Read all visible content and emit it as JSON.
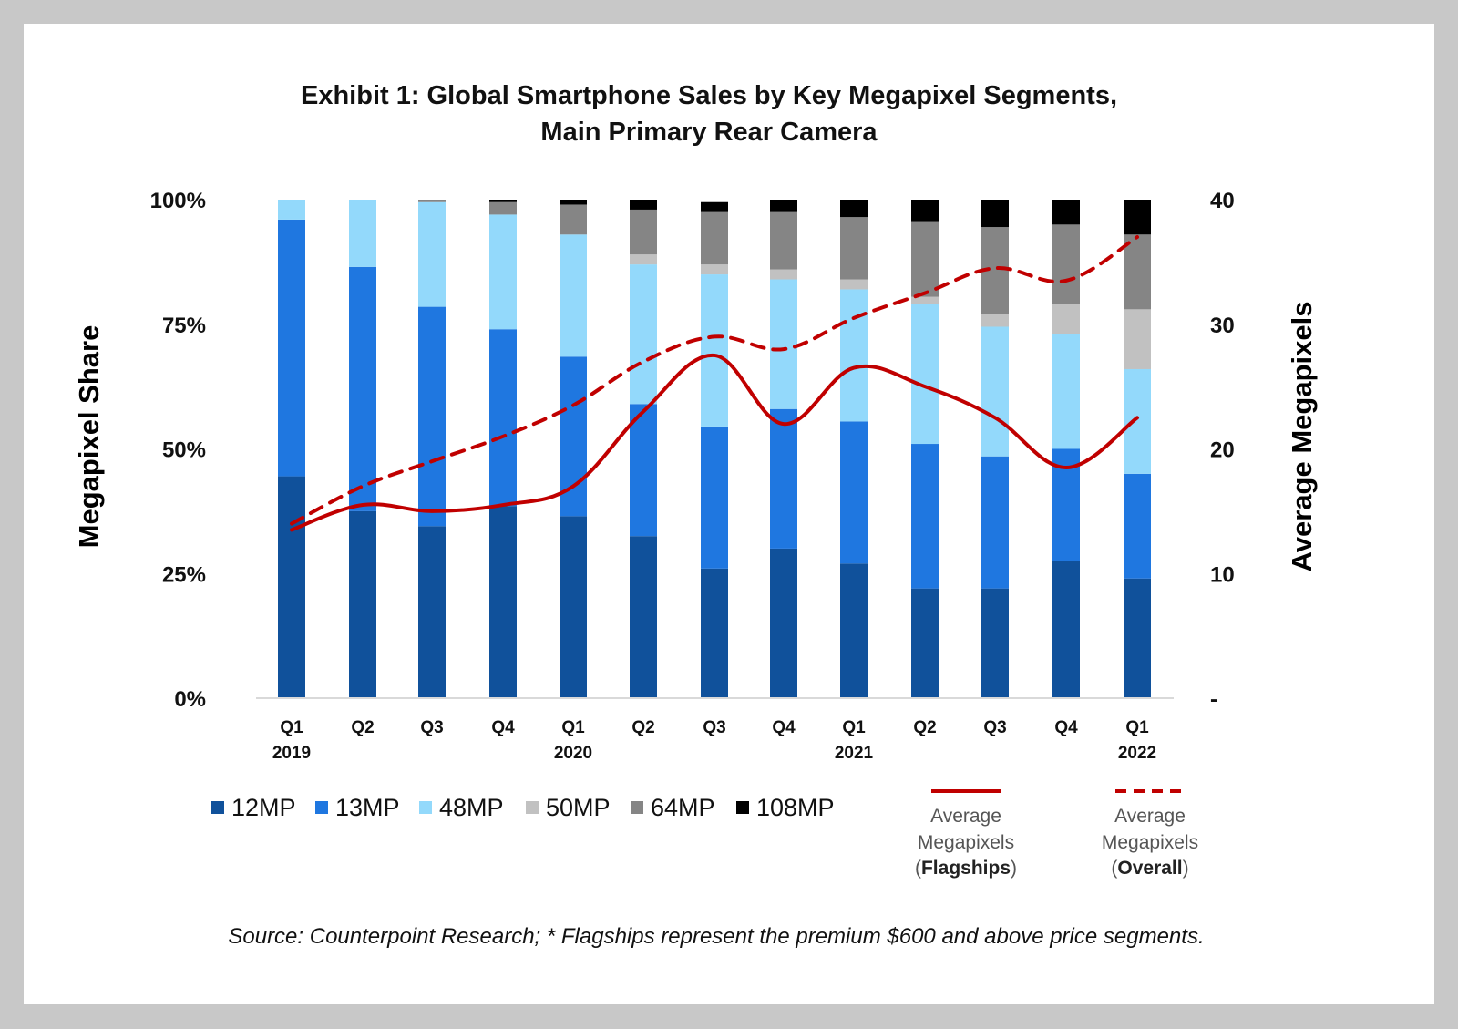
{
  "chart_data": {
    "type": "bar",
    "stacked": true,
    "title": [
      "Exhibit 1:  Global Smartphone Sales by Key Megapixel Segments,",
      "Main Primary Rear Camera"
    ],
    "ylabel": "Megapixel Share",
    "y2label": "Average Megapixels",
    "ylim": [
      0,
      100
    ],
    "y2lim": [
      0,
      40
    ],
    "yticks": [
      "0%",
      "25%",
      "50%",
      "75%",
      "100%"
    ],
    "y2ticks": [
      "-",
      "10",
      "20",
      "30",
      "40"
    ],
    "categories": [
      {
        "q": "Q1",
        "year": "2019"
      },
      {
        "q": "Q2",
        "year": ""
      },
      {
        "q": "Q3",
        "year": ""
      },
      {
        "q": "Q4",
        "year": ""
      },
      {
        "q": "Q1",
        "year": "2020"
      },
      {
        "q": "Q2",
        "year": ""
      },
      {
        "q": "Q3",
        "year": ""
      },
      {
        "q": "Q4",
        "year": ""
      },
      {
        "q": "Q1",
        "year": "2021"
      },
      {
        "q": "Q2",
        "year": ""
      },
      {
        "q": "Q3",
        "year": ""
      },
      {
        "q": "Q4",
        "year": ""
      },
      {
        "q": "Q1",
        "year": "2022"
      }
    ],
    "series": [
      {
        "name": "12MP",
        "color": "#10519b",
        "values": [
          44.5,
          37.5,
          34.5,
          38.5,
          36.5,
          32.5,
          26,
          30,
          27,
          22,
          22,
          27.5,
          24
        ]
      },
      {
        "name": "13MP",
        "color": "#1f77e0",
        "values": [
          51.5,
          49,
          44,
          35.5,
          32,
          26.5,
          28.5,
          28,
          28.5,
          29,
          26.5,
          22.5,
          21
        ]
      },
      {
        "name": "48MP",
        "color": "#93d9fb",
        "values": [
          4,
          13.5,
          21,
          23,
          24.5,
          28,
          30.5,
          26,
          26.5,
          28,
          26,
          23,
          21
        ]
      },
      {
        "name": "50MP",
        "color": "#c1c1c1",
        "values": [
          0,
          0,
          0,
          0,
          0,
          2,
          2,
          2,
          2,
          1.5,
          2.5,
          6,
          12
        ]
      },
      {
        "name": "64MP",
        "color": "#858585",
        "values": [
          0,
          0,
          0.5,
          2.5,
          6,
          9,
          10.5,
          11.5,
          12.5,
          15,
          17.5,
          16,
          15
        ]
      },
      {
        "name": "108MP",
        "color": "#000000",
        "values": [
          0,
          0,
          0,
          0.5,
          1,
          2,
          2,
          2.5,
          3.5,
          4.5,
          5.5,
          5,
          7
        ]
      }
    ],
    "lines": [
      {
        "name": "Average Megapixels (Flagships)",
        "legend": [
          "Average",
          "Megapixels",
          "(",
          "Flagships",
          ")"
        ],
        "color": "#c00000",
        "dashed": false,
        "values": [
          13.5,
          15.5,
          15,
          15.5,
          17,
          23,
          27.5,
          22,
          26.5,
          25,
          22.5,
          18.5,
          22.5
        ]
      },
      {
        "name": "Average Megapixels (Overall)",
        "legend": [
          "Average",
          "Megapixels",
          "(",
          "Overall",
          ")"
        ],
        "color": "#c00000",
        "dashed": true,
        "values": [
          14,
          17,
          19,
          21,
          23.5,
          27,
          29,
          28,
          30.5,
          32.5,
          34.5,
          33.5,
          37
        ]
      }
    ],
    "source": "Source: Counterpoint Research; * Flagships represent the premium $600 and above price segments."
  }
}
